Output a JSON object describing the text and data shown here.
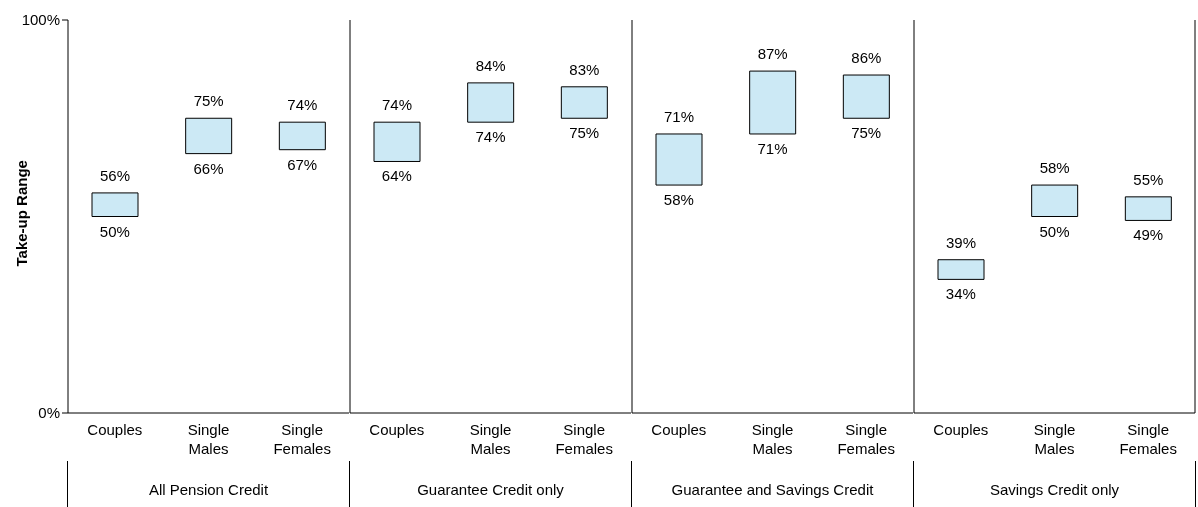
{
  "chart_data": [
    {
      "type": "bar",
      "xlabel": "All Pension Credit",
      "ylabel": "Take-up Range",
      "categories": [
        "Couples",
        "Single Males",
        "Single Females"
      ],
      "base": [
        50,
        66,
        67
      ],
      "values": [
        6,
        9,
        7
      ],
      "value_labels": [
        "56%",
        "75%",
        "74%"
      ],
      "color": "#cce9f5",
      "ylim": [
        0,
        100
      ],
      "yticks": [
        {
          "value": 0,
          "label": "0%"
        },
        {
          "value": 100,
          "label": "100%"
        }
      ],
      "grid": false,
      "legend": false,
      "annotations": [
        {
          "text": "50%",
          "x": "Couples",
          "y": 50
        },
        {
          "text": "66%",
          "x": "Single Males",
          "y": 66
        },
        {
          "text": "67%",
          "x": "Single Females",
          "y": 67
        }
      ]
    },
    {
      "type": "bar",
      "xlabel": "Guarantee Credit only",
      "categories": [
        "Couples",
        "Single Males",
        "Single Females"
      ],
      "base": [
        64,
        74,
        75
      ],
      "values": [
        10,
        10,
        8
      ],
      "value_labels": [
        "74%",
        "84%",
        "83%"
      ],
      "color": "#cce9f5",
      "ylim": [
        0,
        100
      ],
      "tick_labels": "x",
      "grid": false,
      "legend": false,
      "annotations": [
        {
          "text": "64%",
          "x": "Couples",
          "y": 64
        },
        {
          "text": "74%",
          "x": "Single Males",
          "y": 74
        },
        {
          "text": "75%",
          "x": "Single Females",
          "y": 75
        }
      ]
    },
    {
      "type": "bar",
      "xlabel": "Guarantee and Savings Credit",
      "categories": [
        "Couples",
        "Single Males",
        "Single Females"
      ],
      "base": [
        58,
        71,
        75
      ],
      "values": [
        13,
        16,
        11
      ],
      "value_labels": [
        "71%",
        "87%",
        "86%"
      ],
      "color": "#cce9f5",
      "ylim": [
        0,
        100
      ],
      "tick_labels": "x",
      "grid": false,
      "legend": false,
      "annotations": [
        {
          "text": "58%",
          "x": "Couples",
          "y": 58
        },
        {
          "text": "71%",
          "x": "Single Males",
          "y": 71
        },
        {
          "text": "75%",
          "x": "Single Females",
          "y": 75
        }
      ]
    },
    {
      "type": "bar",
      "xlabel": "Savings Credit only",
      "categories": [
        "Couples",
        "Single Males",
        "Single Females"
      ],
      "base": [
        34,
        50,
        49
      ],
      "values": [
        5,
        8,
        6
      ],
      "value_labels": [
        "39%",
        "58%",
        "55%"
      ],
      "color": "#cce9f5",
      "ylim": [
        0,
        100
      ],
      "tick_labels": "x",
      "grid": false,
      "legend": false,
      "annotations": [
        {
          "text": "34%",
          "x": "Couples",
          "y": 34
        },
        {
          "text": "50%",
          "x": "Single Males",
          "y": 50
        },
        {
          "text": "49%",
          "x": "Single Females",
          "y": 49
        }
      ]
    }
  ]
}
